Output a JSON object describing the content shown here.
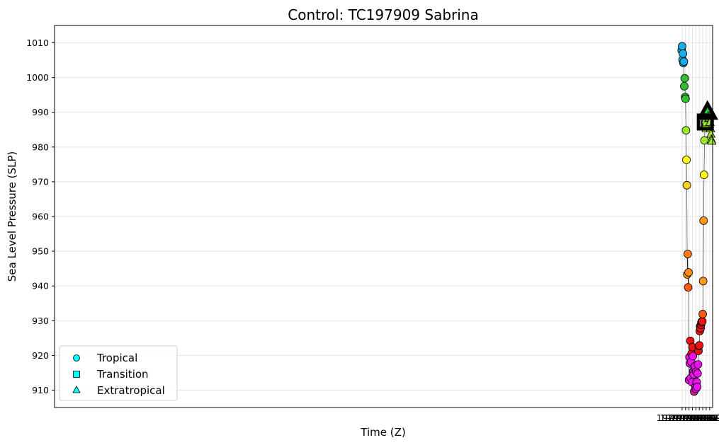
{
  "chart_data": {
    "type": "scatter",
    "title": "Control: TC197909 Sabrina",
    "xlabel": "Time (Z)",
    "ylabel": "Sea Level Pressure (SLP)",
    "x_type": "datetime",
    "xlim": [
      "1978-08-31T15:00",
      "1979-09-18T18:00"
    ],
    "ylim": [
      905,
      1015
    ],
    "x_ticks": [
      "1979-09-01",
      "1979-09-03",
      "1979-09-05",
      "1979-09-07",
      "1979-09-09",
      "1979-09-11",
      "1979-09-13",
      "1979-09-15",
      "1979-09-17"
    ],
    "y_ticks": [
      910,
      920,
      930,
      940,
      950,
      960,
      970,
      980,
      990,
      1000,
      1010
    ],
    "grid": true,
    "legend": {
      "placement": "lower-left",
      "entries": [
        {
          "label": "Tropical",
          "marker": "circle"
        },
        {
          "label": "Transition",
          "marker": "square"
        },
        {
          "label": "Extratropical",
          "marker": "triangle"
        }
      ]
    },
    "highlighted": [
      {
        "t": "1979-09-14T12:00",
        "y": 987.2,
        "marker": "square"
      },
      {
        "t": "1979-09-15T18:00",
        "y": 990.0,
        "marker": "triangle"
      }
    ],
    "points": [
      {
        "t": "1979-08-31T18:00",
        "y": 1007.8,
        "phase": "Tropical",
        "color": "#1aaee8"
      },
      {
        "t": "1979-09-01T00:00",
        "y": 1009.0,
        "phase": "Tropical",
        "color": "#1aaee8"
      },
      {
        "t": "1979-09-01T06:00",
        "y": 1005.1,
        "phase": "Tropical",
        "color": "#1aaee8"
      },
      {
        "t": "1979-09-01T12:00",
        "y": 1006.9,
        "phase": "Tropical",
        "color": "#1aaee8"
      },
      {
        "t": "1979-09-01T18:00",
        "y": 1004.2,
        "phase": "Tropical",
        "color": "#1aaee8"
      },
      {
        "t": "1979-09-02T00:00",
        "y": 1004.6,
        "phase": "Tropical",
        "color": "#1aaee8"
      },
      {
        "t": "1979-09-02T06:00",
        "y": 997.5,
        "phase": "Tropical",
        "color": "#2fbf2f"
      },
      {
        "t": "1979-09-02T12:00",
        "y": 999.8,
        "phase": "Tropical",
        "color": "#2fbf2f"
      },
      {
        "t": "1979-09-02T18:00",
        "y": 994.4,
        "phase": "Tropical",
        "color": "#2fbf2f"
      },
      {
        "t": "1979-09-03T00:00",
        "y": 993.9,
        "phase": "Tropical",
        "color": "#2fbf2f"
      },
      {
        "t": "1979-09-03T06:00",
        "y": 984.8,
        "phase": "Tropical",
        "color": "#9ce82c"
      },
      {
        "t": "1979-09-03T12:00",
        "y": 976.3,
        "phase": "Tropical",
        "color": "#ffff00"
      },
      {
        "t": "1979-09-03T18:00",
        "y": 969.0,
        "phase": "Tropical",
        "color": "#ffd21f"
      },
      {
        "t": "1979-09-04T00:00",
        "y": 943.3,
        "phase": "Tropical",
        "color": "#ff9a1a"
      },
      {
        "t": "1979-09-04T06:00",
        "y": 949.2,
        "phase": "Tropical",
        "color": "#ff7a1a"
      },
      {
        "t": "1979-09-04T12:00",
        "y": 939.6,
        "phase": "Tropical",
        "color": "#ff5a14"
      },
      {
        "t": "1979-09-04T18:00",
        "y": 943.9,
        "phase": "Tropical",
        "color": "#ff8c1a"
      },
      {
        "t": "1979-09-05T00:00",
        "y": 912.9,
        "phase": "Tropical",
        "color": "#ee11ee"
      },
      {
        "t": "1979-09-05T06:00",
        "y": 919.5,
        "phase": "Tropical",
        "color": "#ee11ee"
      },
      {
        "t": "1979-09-05T12:00",
        "y": 917.7,
        "phase": "Tropical",
        "color": "#ee11ee"
      },
      {
        "t": "1979-09-05T18:00",
        "y": 924.2,
        "phase": "Tropical",
        "color": "#ee1111"
      },
      {
        "t": "1979-09-06T00:00",
        "y": 913.5,
        "phase": "Tropical",
        "color": "#ee11ee"
      },
      {
        "t": "1979-09-06T06:00",
        "y": 918.2,
        "phase": "Tropical",
        "color": "#ee11ee"
      },
      {
        "t": "1979-09-06T12:00",
        "y": 920.5,
        "phase": "Tropical",
        "color": "#ee1111"
      },
      {
        "t": "1979-09-06T18:00",
        "y": 912.3,
        "phase": "Tropical",
        "color": "#ee11ee"
      },
      {
        "t": "1979-09-07T00:00",
        "y": 922.4,
        "phase": "Tropical",
        "color": "#ee1111"
      },
      {
        "t": "1979-09-07T06:00",
        "y": 919.8,
        "phase": "Tropical",
        "color": "#ee11ee"
      },
      {
        "t": "1979-09-07T12:00",
        "y": 915.4,
        "phase": "Tropical",
        "color": "#ee11ee"
      },
      {
        "t": "1979-09-07T18:00",
        "y": 914.5,
        "phase": "Tropical",
        "color": "#ee11ee"
      },
      {
        "t": "1979-09-08T00:00",
        "y": 909.6,
        "phase": "Tropical",
        "color": "#cc1a88"
      },
      {
        "t": "1979-09-08T06:00",
        "y": 916.5,
        "phase": "Tropical",
        "color": "#ee11ee"
      },
      {
        "t": "1979-09-08T12:00",
        "y": 916.9,
        "phase": "Tropical",
        "color": "#ee11ee"
      },
      {
        "t": "1979-09-08T18:00",
        "y": 910.9,
        "phase": "Tropical",
        "color": "#ee11ee"
      },
      {
        "t": "1979-09-09T00:00",
        "y": 910.4,
        "phase": "Tropical",
        "color": "#ee11ee"
      },
      {
        "t": "1979-09-09T06:00",
        "y": 915.3,
        "phase": "Tropical",
        "color": "#ee11ee"
      },
      {
        "t": "1979-09-09T12:00",
        "y": 912.3,
        "phase": "Tropical",
        "color": "#ee11ee"
      },
      {
        "t": "1979-09-09T18:00",
        "y": 910.9,
        "phase": "Tropical",
        "color": "#ee11ee"
      },
      {
        "t": "1979-09-10T00:00",
        "y": 914.8,
        "phase": "Tropical",
        "color": "#ee11ee"
      },
      {
        "t": "1979-09-10T06:00",
        "y": 917.4,
        "phase": "Tropical",
        "color": "#ee11ee"
      },
      {
        "t": "1979-09-10T12:00",
        "y": 921.3,
        "phase": "Tropical",
        "color": "#ee1111"
      },
      {
        "t": "1979-09-10T18:00",
        "y": 922.7,
        "phase": "Tropical",
        "color": "#ee1111"
      },
      {
        "t": "1979-09-11T00:00",
        "y": 922.9,
        "phase": "Tropical",
        "color": "#ee1111"
      },
      {
        "t": "1979-09-11T06:00",
        "y": 927.0,
        "phase": "Tropical",
        "color": "#ee1111"
      },
      {
        "t": "1979-09-11T12:00",
        "y": 928.4,
        "phase": "Tropical",
        "color": "#ee1111"
      },
      {
        "t": "1979-09-11T18:00",
        "y": 927.8,
        "phase": "Tropical",
        "color": "#ee1111"
      },
      {
        "t": "1979-09-12T00:00",
        "y": 928.8,
        "phase": "Tropical",
        "color": "#ee1111"
      },
      {
        "t": "1979-09-12T06:00",
        "y": 929.5,
        "phase": "Tropical",
        "color": "#ee1111"
      },
      {
        "t": "1979-09-12T12:00",
        "y": 929.8,
        "phase": "Tropical",
        "color": "#ee1111"
      },
      {
        "t": "1979-09-12T18:00",
        "y": 929.8,
        "phase": "Tropical",
        "color": "#ee1111"
      },
      {
        "t": "1979-09-13T00:00",
        "y": 931.9,
        "phase": "Tropical",
        "color": "#ff5a14"
      },
      {
        "t": "1979-09-13T06:00",
        "y": 941.4,
        "phase": "Tropical",
        "color": "#ff9a1a"
      },
      {
        "t": "1979-09-13T12:00",
        "y": 958.8,
        "phase": "Tropical",
        "color": "#ff9a1a"
      },
      {
        "t": "1979-09-13T18:00",
        "y": 972.0,
        "phase": "Tropical",
        "color": "#ffff00"
      },
      {
        "t": "1979-09-14T00:00",
        "y": 981.9,
        "phase": "Tropical",
        "color": "#9ce82c"
      },
      {
        "t": "1979-09-14T06:00",
        "y": 985.5,
        "phase": "Tropical",
        "color": "#9ce82c"
      },
      {
        "t": "1979-09-14T12:00",
        "y": 987.2,
        "phase": "Transition",
        "color": "#9ce82c"
      },
      {
        "t": "1979-09-14T18:00",
        "y": 986.5,
        "phase": "Transition",
        "color": "#9ce82c"
      },
      {
        "t": "1979-09-15T00:00",
        "y": 985.5,
        "phase": "Transition",
        "color": "#9ce82c"
      },
      {
        "t": "1979-09-15T06:00",
        "y": 987.2,
        "phase": "Transition",
        "color": "#9ce82c"
      },
      {
        "t": "1979-09-15T12:00",
        "y": 989.5,
        "phase": "Transition",
        "color": "#9ce82c"
      },
      {
        "t": "1979-09-15T18:00",
        "y": 990.0,
        "phase": "Extratropical",
        "color": "#2fbf2f"
      },
      {
        "t": "1979-09-16T00:00",
        "y": 990.5,
        "phase": "Extratropical",
        "color": "#2fbf2f"
      },
      {
        "t": "1979-09-16T06:00",
        "y": 988.8,
        "phase": "Extratropical",
        "color": "#9ce82c"
      },
      {
        "t": "1979-09-16T12:00",
        "y": 988.2,
        "phase": "Extratropical",
        "color": "#9ce82c"
      },
      {
        "t": "1979-09-16T18:00",
        "y": 988.4,
        "phase": "Extratropical",
        "color": "#9ce82c"
      },
      {
        "t": "1979-09-17T00:00",
        "y": 988.8,
        "phase": "Extratropical",
        "color": "#9ce82c"
      },
      {
        "t": "1979-09-17T06:00",
        "y": 987.1,
        "phase": "Extratropical",
        "color": "#9ce82c"
      },
      {
        "t": "1979-09-17T12:00",
        "y": 985.3,
        "phase": "Extratropical",
        "color": "#9ce82c"
      },
      {
        "t": "1979-09-17T18:00",
        "y": 983.7,
        "phase": "Extratropical",
        "color": "#9ce82c"
      },
      {
        "t": "1979-09-18T00:00",
        "y": 982.2,
        "phase": "Extratropical",
        "color": "#9ce82c"
      },
      {
        "t": "1979-09-18T06:00",
        "y": 981.7,
        "phase": "Extratropical",
        "color": "#9ce82c"
      }
    ]
  }
}
